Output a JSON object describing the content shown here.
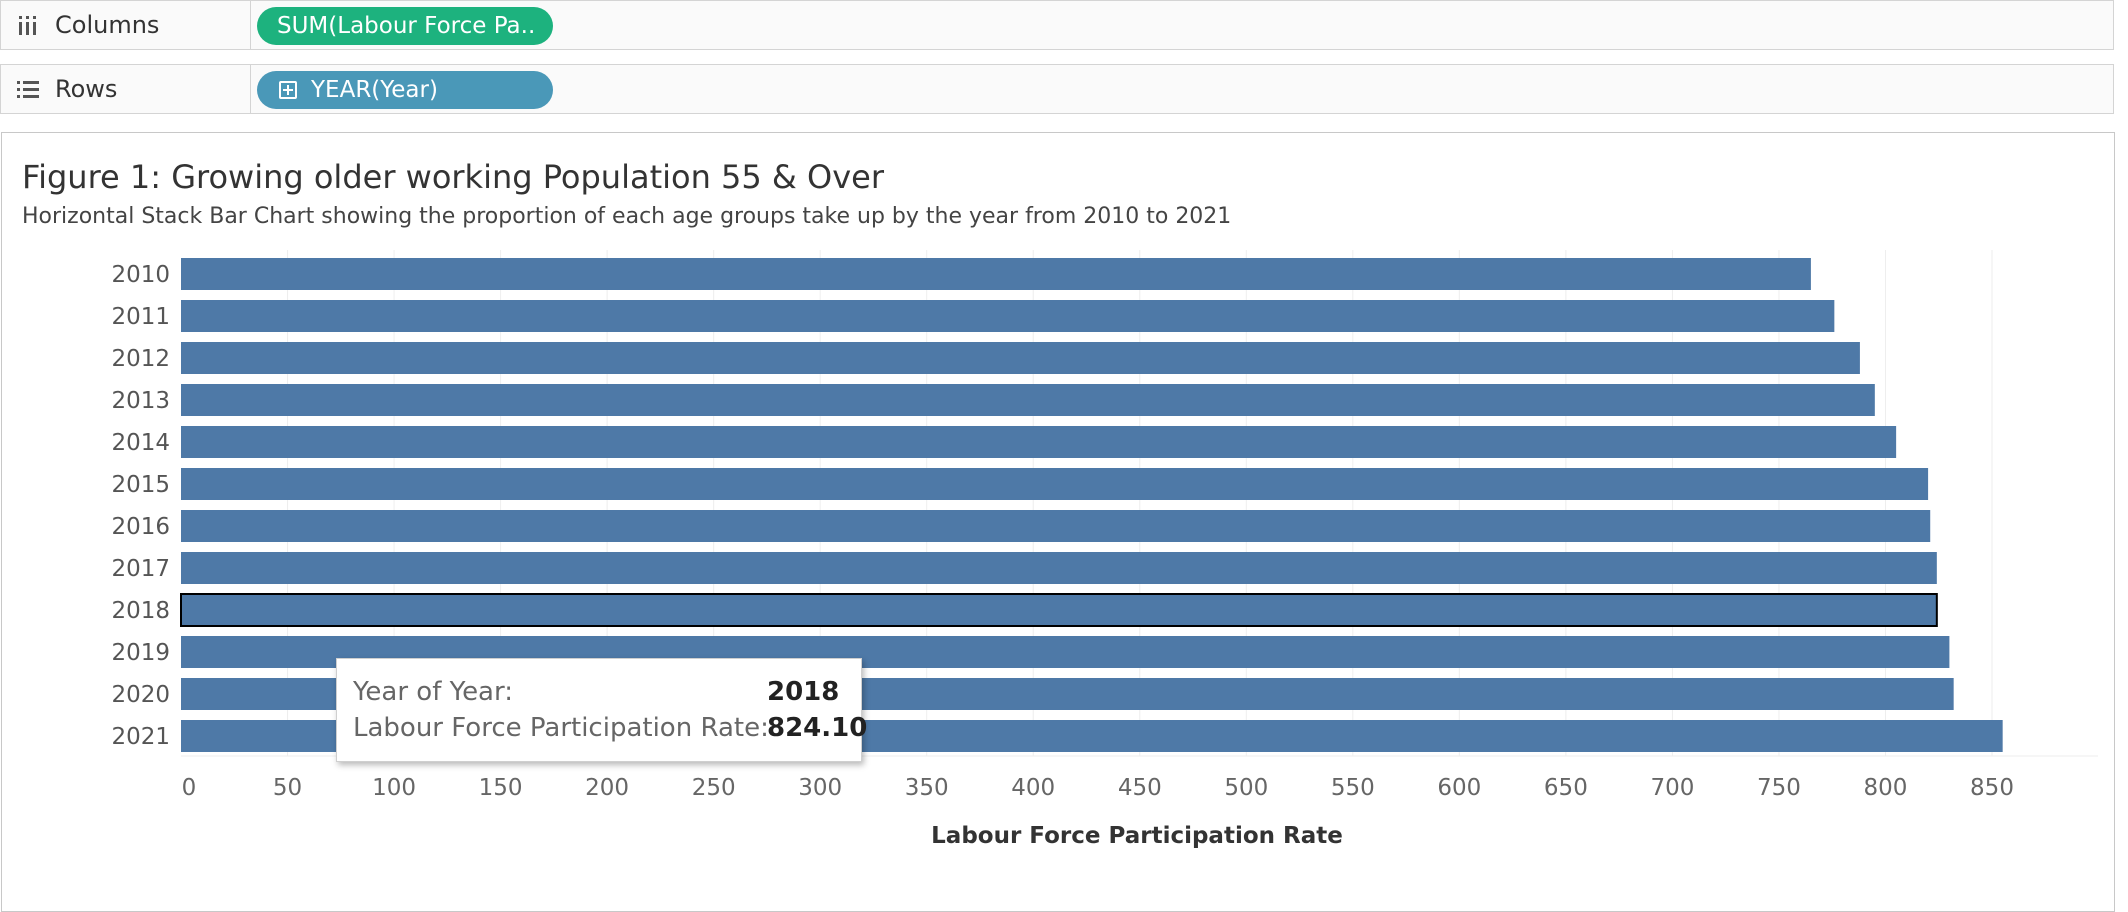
{
  "shelves": {
    "columns": {
      "label": "Columns",
      "pill": "SUM(Labour Force Pa..",
      "icon": "columns-icon",
      "pill_color": "#1db27e"
    },
    "rows": {
      "label": "Rows",
      "pill": "YEAR(Year)",
      "icon": "rows-icon",
      "pill_color": "#4a98b8"
    }
  },
  "chart_data": {
    "type": "bar",
    "orientation": "horizontal",
    "title": "Figure 1: Growing older working Population 55 & Over",
    "subtitle": "Horizontal Stack Bar Chart showing the proportion of each age groups take up by the year from 2010 to 2021",
    "xlabel": "Labour Force Participation Rate",
    "ylabel": "",
    "categories": [
      "2010",
      "2011",
      "2012",
      "2013",
      "2014",
      "2015",
      "2016",
      "2017",
      "2018",
      "2019",
      "2020",
      "2021"
    ],
    "values": [
      765,
      776,
      788,
      795,
      805,
      820,
      821,
      824.1,
      824.1,
      830,
      832,
      855
    ],
    "xlim": [
      0,
      850
    ],
    "xticks": [
      0,
      50,
      100,
      150,
      200,
      250,
      300,
      350,
      400,
      450,
      500,
      550,
      600,
      650,
      700,
      750,
      800,
      850
    ],
    "bar_color": "#4e79a7",
    "highlighted": "2018",
    "grid": "vertical"
  },
  "tooltip": {
    "year_label": "Year of Year:",
    "year_value": "2018",
    "rate_label": "Labour Force Participation Rate:",
    "rate_value": "824.10"
  }
}
